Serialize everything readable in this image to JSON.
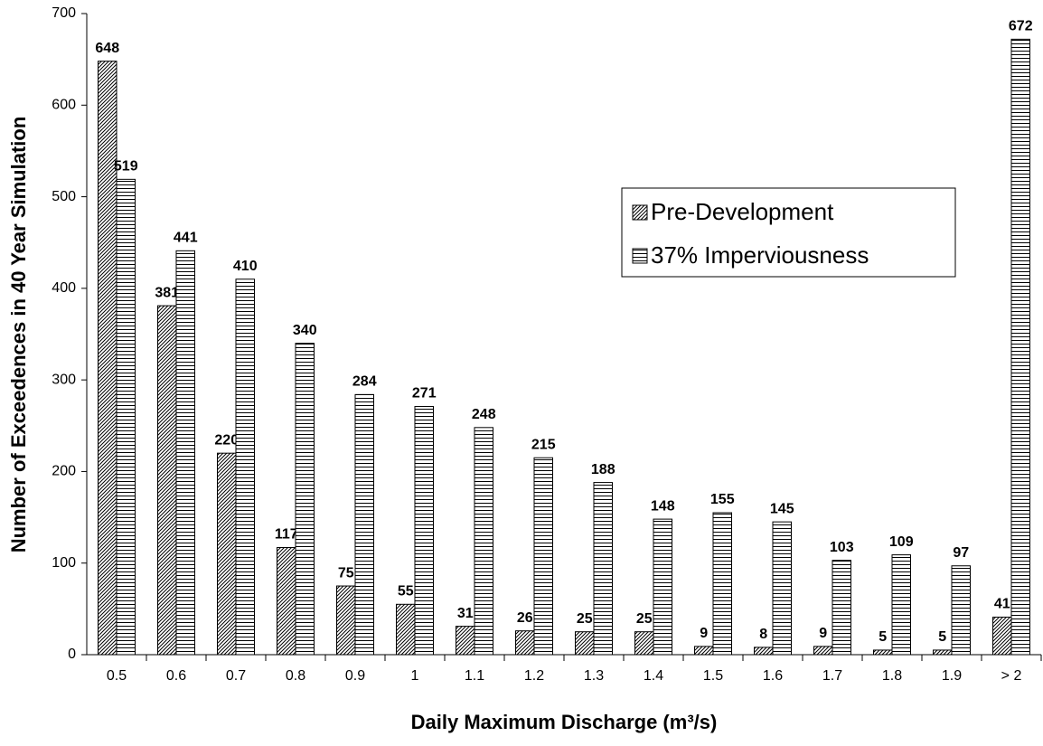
{
  "chart_data": {
    "type": "bar",
    "x_label": "Daily Maximum Discharge (m³/s)",
    "y_label": "Number of Exceedences in 40 Year Simulation",
    "categories": [
      "0.5",
      "0.6",
      "0.7",
      "0.8",
      "0.9",
      "1",
      "1.1",
      "1.2",
      "1.3",
      "1.4",
      "1.5",
      "1.6",
      "1.7",
      "1.8",
      "1.9",
      "> 2"
    ],
    "series": [
      {
        "name": "Pre-Development",
        "color": "#000000",
        "pattern": "diagonal",
        "values": [
          648,
          381,
          220,
          117,
          75,
          55,
          31,
          26,
          25,
          25,
          9,
          8,
          9,
          5,
          5,
          41
        ]
      },
      {
        "name": "37% Imperviousness",
        "color": "#000000",
        "pattern": "horizontal",
        "values": [
          519,
          441,
          410,
          340,
          284,
          271,
          248,
          215,
          188,
          148,
          155,
          145,
          103,
          109,
          97,
          672
        ]
      }
    ],
    "ylim": [
      0,
      700
    ],
    "yticks": [
      0,
      100,
      200,
      300,
      400,
      500,
      600,
      700
    ],
    "grid": false,
    "legend": "right"
  }
}
